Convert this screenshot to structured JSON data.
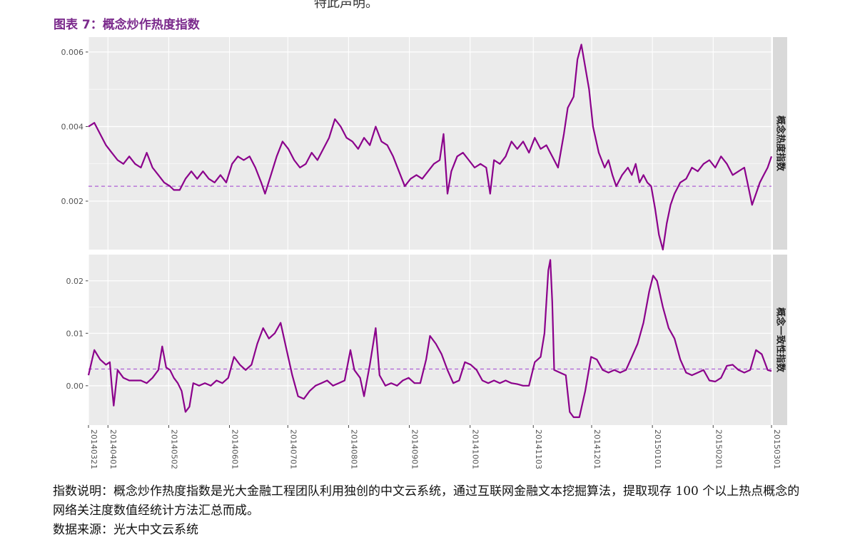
{
  "header_fragment": "特此声明。",
  "figure_title": "图表 7：概念炒作热度指数",
  "notes": {
    "description": "指数说明：概念炒作热度指数是光大金融工程团队利用独创的中文云系统，通过互联网金融文本挖掘算法，提取现存 100 个以上热点概念的网络关注度数值经统计方法汇总而成。",
    "source": "数据来源：光大中文云系统"
  },
  "colors": {
    "line": "#8b008b",
    "reference_line": "#a040d0",
    "panel_bg": "#ebebeb",
    "strip_bg": "#d9d9d9",
    "grid": "#ffffff"
  },
  "chart_data": {
    "type": "line",
    "x_tick_labels": [
      "20140321",
      "20140401",
      "20140502",
      "20140601",
      "20140701",
      "20140801",
      "20140901",
      "20141001",
      "20141103",
      "20141201",
      "20150101",
      "20150201",
      "20150301"
    ],
    "x_tick_index": [
      0,
      8,
      33,
      58,
      82,
      107,
      132,
      157,
      183,
      207,
      232,
      257,
      281
    ],
    "x_total_points": 282,
    "panels": [
      {
        "strip_label": "概念热度指数",
        "y_range": [
          0.0007,
          0.0064
        ],
        "y_ticks": [
          0.002,
          0.004,
          0.006
        ],
        "y_tick_labels": [
          "0.002",
          "0.004",
          "0.006"
        ],
        "reference_value": 0.0024,
        "keyframes": [
          [
            0,
            0.004
          ],
          [
            3,
            0.0041
          ],
          [
            6,
            0.0038
          ],
          [
            9,
            0.0035
          ],
          [
            12,
            0.0033
          ],
          [
            15,
            0.0031
          ],
          [
            18,
            0.003
          ],
          [
            21,
            0.0032
          ],
          [
            24,
            0.003
          ],
          [
            27,
            0.0029
          ],
          [
            30,
            0.0033
          ],
          [
            33,
            0.0029
          ],
          [
            36,
            0.0027
          ],
          [
            39,
            0.0025
          ],
          [
            42,
            0.0024
          ],
          [
            44,
            0.0023
          ],
          [
            47,
            0.0023
          ],
          [
            50,
            0.0026
          ],
          [
            53,
            0.0028
          ],
          [
            56,
            0.0026
          ],
          [
            59,
            0.0028
          ],
          [
            62,
            0.0026
          ],
          [
            65,
            0.0025
          ],
          [
            68,
            0.0027
          ],
          [
            71,
            0.0025
          ],
          [
            74,
            0.003
          ],
          [
            77,
            0.0032
          ],
          [
            80,
            0.0031
          ],
          [
            83,
            0.0032
          ],
          [
            86,
            0.0029
          ],
          [
            89,
            0.0025
          ],
          [
            91,
            0.0022
          ],
          [
            94,
            0.0027
          ],
          [
            97,
            0.0032
          ],
          [
            100,
            0.0036
          ],
          [
            103,
            0.0034
          ],
          [
            106,
            0.0031
          ],
          [
            109,
            0.0029
          ],
          [
            112,
            0.003
          ],
          [
            115,
            0.0033
          ],
          [
            118,
            0.0031
          ],
          [
            121,
            0.0034
          ],
          [
            124,
            0.0037
          ],
          [
            127,
            0.0042
          ],
          [
            130,
            0.004
          ],
          [
            133,
            0.0037
          ],
          [
            136,
            0.0036
          ],
          [
            139,
            0.0034
          ],
          [
            142,
            0.0037
          ],
          [
            145,
            0.0035
          ],
          [
            148,
            0.004
          ],
          [
            151,
            0.0036
          ],
          [
            154,
            0.0035
          ],
          [
            157,
            0.0032
          ],
          [
            160,
            0.0028
          ],
          [
            163,
            0.0024
          ],
          [
            166,
            0.0026
          ],
          [
            169,
            0.0027
          ],
          [
            172,
            0.0026
          ],
          [
            175,
            0.0028
          ],
          [
            178,
            0.003
          ],
          [
            181,
            0.0031
          ],
          [
            183,
            0.0038
          ],
          [
            185,
            0.0022
          ],
          [
            187,
            0.0028
          ],
          [
            190,
            0.0032
          ],
          [
            193,
            0.0033
          ],
          [
            196,
            0.0031
          ],
          [
            199,
            0.0029
          ],
          [
            202,
            0.003
          ],
          [
            205,
            0.0029
          ],
          [
            207,
            0.0022
          ],
          [
            209,
            0.0031
          ],
          [
            212,
            0.003
          ],
          [
            215,
            0.0032
          ],
          [
            218,
            0.0036
          ],
          [
            221,
            0.0034
          ],
          [
            224,
            0.0036
          ],
          [
            227,
            0.0033
          ],
          [
            230,
            0.0037
          ],
          [
            233,
            0.0034
          ],
          [
            236,
            0.0035
          ],
          [
            239,
            0.0032
          ],
          [
            242,
            0.0029
          ],
          [
            245,
            0.0038
          ],
          [
            247,
            0.0045
          ],
          [
            250,
            0.0048
          ],
          [
            252,
            0.0058
          ],
          [
            254,
            0.0062
          ],
          [
            256,
            0.0056
          ],
          [
            258,
            0.005
          ],
          [
            260,
            0.004
          ],
          [
            263,
            0.0033
          ],
          [
            266,
            0.0029
          ],
          [
            268,
            0.0031
          ],
          [
            270,
            0.0027
          ],
          [
            272,
            0.0024
          ],
          [
            275,
            0.0027
          ],
          [
            278,
            0.0029
          ],
          [
            280,
            0.0027
          ],
          [
            282,
            0.003
          ],
          [
            284,
            0.0025
          ],
          [
            286,
            0.0027
          ],
          [
            288,
            0.0025
          ],
          [
            290,
            0.0024
          ],
          [
            292,
            0.0018
          ],
          [
            294,
            0.0011
          ],
          [
            296,
            0.0007
          ],
          [
            298,
            0.0014
          ],
          [
            300,
            0.0019
          ],
          [
            302,
            0.0022
          ],
          [
            305,
            0.0025
          ],
          [
            308,
            0.0026
          ],
          [
            311,
            0.0029
          ],
          [
            314,
            0.0028
          ],
          [
            317,
            0.003
          ],
          [
            320,
            0.0031
          ],
          [
            323,
            0.0029
          ],
          [
            326,
            0.0032
          ],
          [
            329,
            0.003
          ],
          [
            332,
            0.0027
          ],
          [
            335,
            0.0028
          ],
          [
            338,
            0.0029
          ],
          [
            340,
            0.0024
          ],
          [
            342,
            0.0019
          ],
          [
            344,
            0.0022
          ],
          [
            346,
            0.0025
          ],
          [
            348,
            0.0027
          ],
          [
            350,
            0.0029
          ],
          [
            352,
            0.0032
          ]
        ]
      },
      {
        "strip_label": "概念一致性指数",
        "y_range": [
          -0.0075,
          0.025
        ],
        "y_ticks": [
          0.0,
          0.01,
          0.02
        ],
        "y_tick_labels": [
          "0.00",
          "0.01",
          "0.02"
        ],
        "reference_value": 0.0032,
        "keyframes": [
          [
            0,
            0.002
          ],
          [
            3,
            0.0068
          ],
          [
            6,
            0.005
          ],
          [
            9,
            0.004
          ],
          [
            11,
            0.0045
          ],
          [
            12,
            0.0
          ],
          [
            13,
            -0.0038
          ],
          [
            15,
            0.003
          ],
          [
            18,
            0.0015
          ],
          [
            21,
            0.001
          ],
          [
            24,
            0.001
          ],
          [
            27,
            0.001
          ],
          [
            30,
            0.0005
          ],
          [
            33,
            0.0015
          ],
          [
            36,
            0.003
          ],
          [
            38,
            0.0075
          ],
          [
            40,
            0.0035
          ],
          [
            42,
            0.003
          ],
          [
            44,
            0.0015
          ],
          [
            46,
            0.0005
          ],
          [
            48,
            -0.001
          ],
          [
            50,
            -0.005
          ],
          [
            52,
            -0.004
          ],
          [
            54,
            0.0005
          ],
          [
            57,
            0.0
          ],
          [
            60,
            0.0005
          ],
          [
            63,
            0.0
          ],
          [
            66,
            0.001
          ],
          [
            69,
            0.0005
          ],
          [
            72,
            0.0015
          ],
          [
            75,
            0.0055
          ],
          [
            78,
            0.004
          ],
          [
            81,
            0.003
          ],
          [
            84,
            0.004
          ],
          [
            87,
            0.008
          ],
          [
            90,
            0.011
          ],
          [
            93,
            0.009
          ],
          [
            96,
            0.01
          ],
          [
            99,
            0.012
          ],
          [
            102,
            0.007
          ],
          [
            105,
            0.002
          ],
          [
            108,
            -0.002
          ],
          [
            111,
            -0.0025
          ],
          [
            114,
            -0.001
          ],
          [
            117,
            0.0
          ],
          [
            120,
            0.0005
          ],
          [
            123,
            0.001
          ],
          [
            126,
            0.0
          ],
          [
            129,
            0.0005
          ],
          [
            132,
            0.001
          ],
          [
            135,
            0.0068
          ],
          [
            137,
            0.003
          ],
          [
            140,
            0.0015
          ],
          [
            142,
            -0.002
          ],
          [
            145,
            0.004
          ],
          [
            148,
            0.011
          ],
          [
            150,
            0.002
          ],
          [
            153,
            0.0
          ],
          [
            156,
            0.0005
          ],
          [
            159,
            0.0
          ],
          [
            162,
            0.001
          ],
          [
            165,
            0.0015
          ],
          [
            168,
            0.0005
          ],
          [
            171,
            0.0005
          ],
          [
            174,
            0.005
          ],
          [
            176,
            0.0095
          ],
          [
            179,
            0.008
          ],
          [
            182,
            0.006
          ],
          [
            185,
            0.003
          ],
          [
            188,
            0.0005
          ],
          [
            191,
            0.001
          ],
          [
            194,
            0.0045
          ],
          [
            197,
            0.004
          ],
          [
            200,
            0.003
          ],
          [
            203,
            0.001
          ],
          [
            206,
            0.0005
          ],
          [
            209,
            0.001
          ],
          [
            212,
            0.0005
          ],
          [
            215,
            0.001
          ],
          [
            218,
            0.0005
          ],
          [
            221,
            0.0003
          ],
          [
            224,
            0.0
          ],
          [
            227,
            0.0
          ],
          [
            230,
            0.0045
          ],
          [
            233,
            0.0055
          ],
          [
            235,
            0.01
          ],
          [
            237,
            0.022
          ],
          [
            238,
            0.024
          ],
          [
            239,
            0.016
          ],
          [
            240,
            0.003
          ],
          [
            243,
            0.0025
          ],
          [
            246,
            0.002
          ],
          [
            248,
            -0.005
          ],
          [
            250,
            -0.006
          ],
          [
            253,
            -0.006
          ],
          [
            256,
            -0.001
          ],
          [
            259,
            0.0055
          ],
          [
            262,
            0.005
          ],
          [
            265,
            0.003
          ],
          [
            268,
            0.0025
          ],
          [
            271,
            0.003
          ],
          [
            274,
            0.0025
          ],
          [
            277,
            0.003
          ],
          [
            280,
            0.0055
          ],
          [
            283,
            0.008
          ],
          [
            286,
            0.012
          ],
          [
            289,
            0.018
          ],
          [
            291,
            0.021
          ],
          [
            293,
            0.02
          ],
          [
            296,
            0.015
          ],
          [
            299,
            0.011
          ],
          [
            302,
            0.009
          ],
          [
            305,
            0.005
          ],
          [
            308,
            0.0025
          ],
          [
            311,
            0.002
          ],
          [
            314,
            0.0025
          ],
          [
            317,
            0.003
          ],
          [
            320,
            0.001
          ],
          [
            323,
            0.0008
          ],
          [
            326,
            0.0015
          ],
          [
            329,
            0.0038
          ],
          [
            332,
            0.004
          ],
          [
            335,
            0.003
          ],
          [
            338,
            0.0025
          ],
          [
            341,
            0.003
          ],
          [
            344,
            0.0068
          ],
          [
            347,
            0.006
          ],
          [
            350,
            0.003
          ],
          [
            352,
            0.0028
          ]
        ]
      }
    ]
  }
}
